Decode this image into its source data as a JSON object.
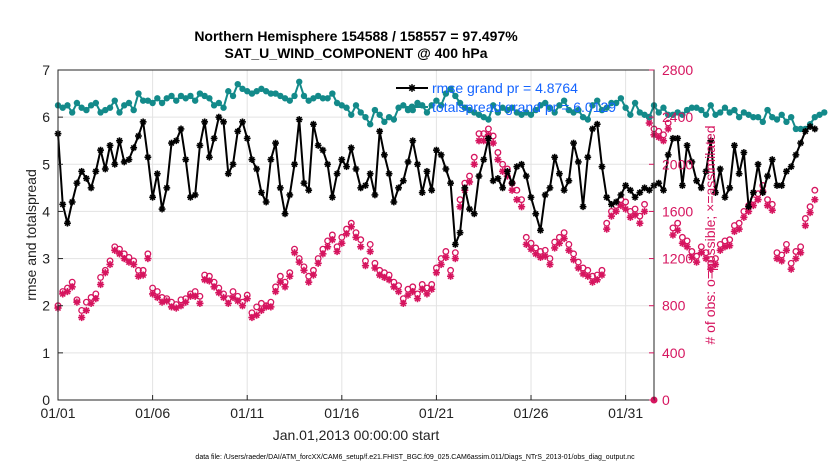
{
  "titles": {
    "line1": "Northern Hemisphere 154588 / 158557 = 97.497%",
    "line2": "SAT_U_WIND_COMPONENT @ 400 hPa"
  },
  "footer": "data file: /Users/raeder/DAI/ATM_forcXX/CAM6_setup/f.e21.FHIST_BGC.f09_025.CAM6assim.011/Diags_NTrS_2013-01/obs_diag_output.nc",
  "colors": {
    "rmse": "#000000",
    "totalspread": "#138a8a",
    "obs": "#d6155f",
    "legend_text": "#1464ff"
  },
  "chart_data": {
    "type": "line",
    "xlabel": "Jan.01,2013 00:00:00 start",
    "ylabel": "rmse and totalspread",
    "y2label": "# of obs: o=possible; ×=assimilated",
    "xlim": [
      0,
      31.5
    ],
    "ylim": [
      0,
      7
    ],
    "y2lim": [
      0,
      2800
    ],
    "x_ticks": [
      0,
      5,
      10,
      15,
      20,
      25,
      30
    ],
    "x_tick_labels": [
      "01/01",
      "01/06",
      "01/11",
      "01/16",
      "01/21",
      "01/26",
      "01/31"
    ],
    "y_ticks": [
      "0",
      "1",
      "2",
      "3",
      "4",
      "5",
      "6",
      "7"
    ],
    "y2_ticks": [
      "0",
      "400",
      "800",
      "1200",
      "1600",
      "2000",
      "2400",
      "2800"
    ],
    "grid": true,
    "legend": [
      {
        "label": "rmse grand pr = 4.8764",
        "color": "#000000",
        "marker": "star"
      },
      {
        "label": "totalspread grand pr = 6.0129",
        "color": "#138a8a",
        "marker": "circle"
      }
    ],
    "legend_position": "top-right",
    "x_step_days": 0.25,
    "rmse": [
      5.65,
      4.15,
      3.75,
      4.2,
      4.6,
      4.85,
      4.7,
      4.5,
      4.85,
      5.3,
      4.9,
      5.4,
      5.0,
      5.5,
      5.05,
      5.1,
      5.35,
      5.6,
      5.9,
      5.15,
      4.3,
      4.8,
      4.05,
      4.5,
      5.45,
      5.5,
      5.75,
      5.1,
      4.3,
      4.35,
      5.4,
      5.9,
      5.15,
      5.55,
      6.0,
      5.9,
      4.8,
      5.0,
      5.7,
      5.9,
      5.55,
      5.1,
      4.9,
      4.4,
      4.2,
      5.1,
      5.45,
      4.5,
      3.95,
      4.35,
      5.0,
      5.95,
      4.6,
      4.45,
      5.85,
      5.4,
      5.3,
      5.0,
      4.3,
      4.8,
      5.1,
      4.95,
      5.35,
      4.9,
      4.5,
      4.55,
      4.8,
      4.35,
      5.7,
      5.2,
      4.8,
      4.2,
      4.5,
      4.65,
      5.05,
      5.5,
      5.0,
      4.4,
      4.85,
      4.45,
      5.3,
      5.2,
      4.9,
      4.6,
      3.3,
      3.55,
      4.5,
      4.05,
      3.95,
      4.75,
      5.1,
      5.55,
      4.65,
      4.7,
      4.5,
      4.85,
      4.6,
      4.95,
      5.0,
      4.75,
      4.3,
      3.95,
      3.6,
      4.35,
      4.5,
      5.15,
      4.8,
      4.45,
      4.65,
      5.45,
      5.05,
      4.1,
      5.15,
      5.75,
      5.85,
      4.95,
      4.3,
      4.15,
      4.2,
      4.35,
      4.55,
      4.45,
      4.3,
      4.4,
      4.5,
      4.45,
      4.55,
      4.6,
      4.45,
      5.2,
      5.55,
      5.55,
      4.55,
      5.4,
      5.05,
      4.65,
      4.5,
      4.85,
      5.5,
      4.4,
      4.9,
      4.3,
      4.5,
      5.4,
      4.8,
      5.25,
      4.1,
      4.4,
      5.0,
      4.4,
      4.75,
      5.1,
      4.55,
      4.55,
      4.85,
      4.95,
      5.2,
      5.45,
      5.7,
      5.8,
      5.75
    ],
    "totalspread": [
      6.25,
      6.2,
      6.25,
      6.1,
      6.3,
      6.2,
      6.15,
      6.25,
      6.3,
      6.1,
      6.15,
      6.2,
      6.35,
      6.1,
      6.25,
      6.3,
      6.15,
      6.5,
      6.35,
      6.35,
      6.3,
      6.4,
      6.3,
      6.4,
      6.45,
      6.35,
      6.45,
      6.4,
      6.45,
      6.35,
      6.5,
      6.45,
      6.4,
      6.25,
      6.3,
      6.2,
      6.55,
      6.45,
      6.7,
      6.6,
      6.55,
      6.5,
      6.55,
      6.6,
      6.55,
      6.5,
      6.5,
      6.45,
      6.4,
      6.35,
      6.45,
      6.75,
      6.45,
      6.35,
      6.4,
      6.45,
      6.4,
      6.4,
      6.5,
      6.3,
      6.25,
      6.2,
      6.05,
      6.25,
      6.1,
      6.0,
      5.85,
      6.15,
      6.05,
      5.9,
      6.0,
      5.95,
      6.2,
      6.25,
      6.15,
      6.15,
      6.3,
      6.25,
      6.1,
      6.25,
      6.35,
      6.25,
      6.5,
      6.6,
      6.45,
      6.3,
      6.2,
      6.15,
      6.1,
      6.05,
      6.0,
      5.95,
      6.25,
      6.1,
      6.2,
      6.15,
      6.2,
      6.1,
      6.05,
      6.1,
      6.05,
      6.15,
      6.25,
      6.3,
      6.2,
      6.1,
      6.25,
      6.35,
      6.15,
      6.1,
      6.15,
      6.0,
      5.95,
      6.25,
      6.35,
      6.15,
      6.2,
      6.3,
      6.3,
      6.4,
      6.2,
      6.05,
      6.3,
      6.1,
      6.05,
      6.0,
      6.25,
      6.1,
      6.2,
      6.05,
      6.05,
      6.1,
      6.05,
      6.15,
      6.2,
      6.2,
      6.15,
      6.05,
      6.25,
      6.05,
      6.1,
      6.2,
      6.1,
      6.15,
      6.0,
      6.1,
      6.05,
      6.0,
      6.0,
      5.9,
      6.15,
      6.0,
      5.95,
      6.05,
      5.9,
      6.0,
      5.75,
      5.75,
      5.75,
      5.85,
      6.0,
      6.05,
      6.1
    ],
    "obs_possible": [
      800,
      920,
      950,
      1000,
      850,
      760,
      830,
      870,
      900,
      1040,
      1100,
      1180,
      1300,
      1280,
      1240,
      1210,
      1180,
      1100,
      1100,
      1240,
      950,
      920,
      870,
      860,
      830,
      810,
      850,
      860,
      900,
      920,
      880,
      1060,
      1050,
      1000,
      950,
      900,
      860,
      920,
      880,
      830,
      890,
      740,
      790,
      820,
      800,
      830,
      960,
      1050,
      1000,
      1080,
      1280,
      1200,
      1130,
      1050,
      1100,
      1200,
      1280,
      1350,
      1400,
      1300,
      1380,
      1450,
      1500,
      1420,
      1360,
      1180,
      1320,
      1160,
      1100,
      1080,
      1060,
      1000,
      970,
      860,
      940,
      960,
      900,
      980,
      950,
      980,
      1120,
      1200,
      1260,
      1100,
      1250,
      1700,
      1840,
      1900,
      2060,
      2260,
      2260,
      2300,
      2240,
      2100,
      2000,
      1960,
      1840,
      1780,
      1700,
      1380,
      1330,
      1290,
      1260,
      1270,
      1200,
      1340,
      1380,
      1420,
      1320,
      1240,
      1170,
      1120,
      1100,
      1050,
      1060,
      1100,
      1500,
      1600,
      1650,
      1700,
      1680,
      1600,
      1620,
      1560,
      1660,
      2400,
      2300,
      2280,
      2250,
      2350,
      1460,
      1500,
      1380,
      1350,
      1260,
      1220,
      1300,
      1250,
      1160,
      1200,
      1320,
      1350,
      1360,
      1480,
      1500,
      1600,
      1650,
      1700,
      1750,
      1820,
      1700,
      1660,
      1250,
      1230,
      1320,
      1160,
      1260,
      1300,
      1540,
      1640,
      1780
    ],
    "obs_assimilated": [
      780,
      900,
      920,
      960,
      830,
      700,
      760,
      820,
      860,
      980,
      1080,
      1150,
      1270,
      1240,
      1200,
      1170,
      1150,
      1050,
      1060,
      1200,
      900,
      870,
      830,
      840,
      790,
      780,
      800,
      830,
      880,
      880,
      820,
      1020,
      1010,
      960,
      910,
      870,
      820,
      870,
      840,
      800,
      860,
      700,
      720,
      760,
      790,
      790,
      920,
      1000,
      960,
      1050,
      1250,
      1170,
      1100,
      1000,
      1060,
      1160,
      1240,
      1300,
      1360,
      1260,
      1330,
      1410,
      1470,
      1380,
      1300,
      1140,
      1260,
      1120,
      1060,
      1040,
      1020,
      960,
      920,
      820,
      890,
      920,
      860,
      940,
      900,
      940,
      1080,
      1150,
      1210,
      1050,
      1200,
      1640,
      1780,
      1850,
      2000,
      2200,
      2200,
      2250,
      2180,
      2040,
      1940,
      1900,
      1780,
      1700,
      1640,
      1320,
      1280,
      1240,
      1210,
      1220,
      1150,
      1290,
      1330,
      1370,
      1270,
      1190,
      1120,
      1070,
      1050,
      1000,
      1020,
      1060,
      1450,
      1560,
      1600,
      1650,
      1620,
      1550,
      1570,
      1500,
      1600,
      2350,
      2250,
      2230,
      2200,
      2300,
      1400,
      1440,
      1330,
      1300,
      1210,
      1170,
      1250,
      1200,
      1110,
      1150,
      1270,
      1300,
      1310,
      1430,
      1450,
      1550,
      1600,
      1650,
      1700,
      1770,
      1650,
      1610,
      1200,
      1180,
      1270,
      1110,
      1200,
      1250,
      1480,
      1590,
      1700
    ]
  }
}
